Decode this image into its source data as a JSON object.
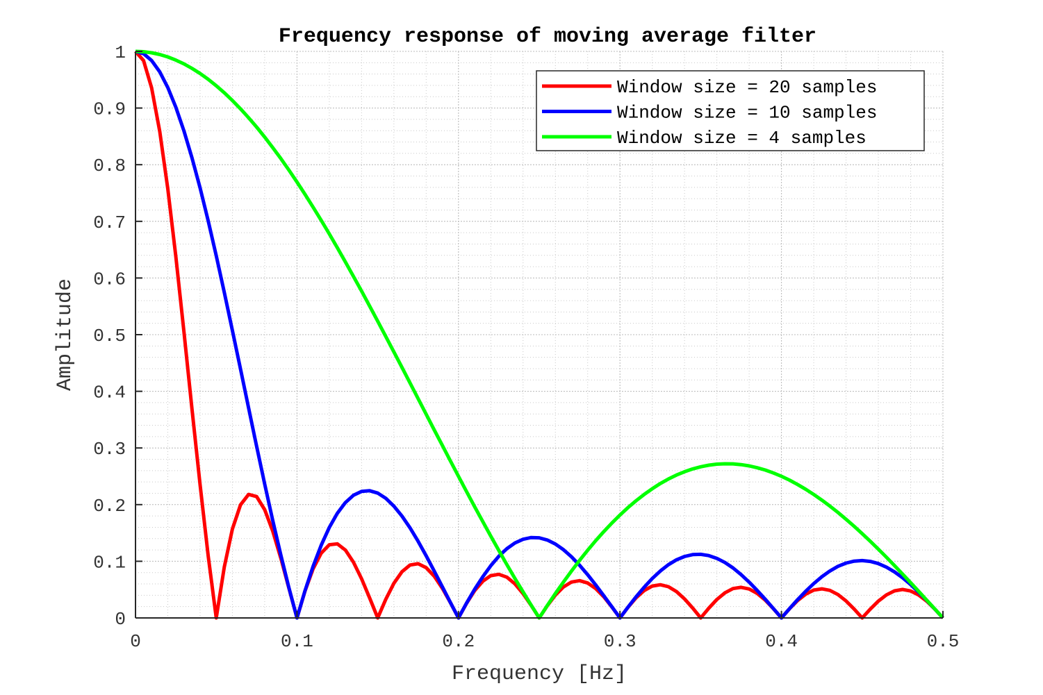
{
  "chart_data": {
    "type": "line",
    "title": "Frequency response of moving average filter",
    "xlabel": "Frequency [Hz]",
    "ylabel": "Amplitude",
    "xlim": [
      0,
      0.5
    ],
    "ylim": [
      0,
      1
    ],
    "xticks": [
      "0",
      "0.1",
      "0.2",
      "0.3",
      "0.4",
      "0.5"
    ],
    "yticks": [
      "0",
      "0.1",
      "0.2",
      "0.3",
      "0.4",
      "0.5",
      "0.6",
      "0.7",
      "0.8",
      "0.9",
      "1"
    ],
    "grid": true,
    "minor_grid": true,
    "legend_position": "top-right",
    "x": [
      0,
      0.005,
      0.01,
      0.015,
      0.02,
      0.025,
      0.03,
      0.035,
      0.04,
      0.045,
      0.05,
      0.055,
      0.06,
      0.065,
      0.07,
      0.075,
      0.08,
      0.085,
      0.09,
      0.095,
      0.1,
      0.105,
      0.11,
      0.115,
      0.12,
      0.125,
      0.13,
      0.135,
      0.14,
      0.145,
      0.15,
      0.155,
      0.16,
      0.165,
      0.17,
      0.175,
      0.18,
      0.185,
      0.19,
      0.195,
      0.2,
      0.205,
      0.21,
      0.215,
      0.22,
      0.225,
      0.23,
      0.235,
      0.24,
      0.245,
      0.25,
      0.255,
      0.26,
      0.265,
      0.27,
      0.275,
      0.28,
      0.285,
      0.29,
      0.295,
      0.3,
      0.305,
      0.31,
      0.315,
      0.32,
      0.325,
      0.33,
      0.335,
      0.34,
      0.345,
      0.35,
      0.355,
      0.36,
      0.365,
      0.37,
      0.375,
      0.38,
      0.385,
      0.39,
      0.395,
      0.4,
      0.405,
      0.41,
      0.415,
      0.42,
      0.425,
      0.43,
      0.435,
      0.44,
      0.445,
      0.45,
      0.455,
      0.46,
      0.465,
      0.47,
      0.475,
      0.48,
      0.485,
      0.49,
      0.495,
      0.5
    ],
    "series": [
      {
        "name": "Window size = 20 samples",
        "color": "#ff0000",
        "values": [
          1,
          0.9837,
          0.9356,
          0.8587,
          0.7573,
          0.6373,
          0.5053,
          0.3686,
          0.2345,
          0.1097,
          0,
          0.0899,
          0.1568,
          0.1995,
          0.218,
          0.2142,
          0.1912,
          0.1533,
          0.1053,
          0.0525,
          0,
          0.0477,
          0.0868,
          0.1144,
          0.1292,
          0.1307,
          0.1197,
          0.0983,
          0.069,
          0.0351,
          0,
          0.033,
          0.061,
          0.0816,
          0.0934,
          0.0957,
          0.0887,
          0.0737,
          0.0523,
          0.0269,
          0,
          0.0257,
          0.048,
          0.0647,
          0.0746,
          0.077,
          0.0719,
          0.0601,
          0.0429,
          0.0222,
          0,
          0.0215,
          0.0403,
          0.0547,
          0.0634,
          0.0658,
          0.0617,
          0.0518,
          0.0372,
          0.0193,
          0,
          0.0189,
          0.0355,
          0.0484,
          0.0563,
          0.0586,
          0.0552,
          0.0466,
          0.0335,
          0.0175,
          0,
          0.0172,
          0.0325,
          0.0444,
          0.0518,
          0.0541,
          0.0511,
          0.0432,
          0.0312,
          0.0163,
          0,
          0.0162,
          0.0306,
          0.0419,
          0.0491,
          0.0514,
          0.0487,
          0.0413,
          0.0299,
          0.0157,
          0,
          0.0156,
          0.0296,
          0.0407,
          0.0478,
          0.0502,
          0.0476,
          0.0405,
          0.0294,
          0.0155,
          0
        ]
      },
      {
        "name": "Window size = 10 samples",
        "color": "#0000ff",
        "values": [
          1,
          0.996,
          0.9838,
          0.9638,
          0.9361,
          0.9012,
          0.8597,
          0.812,
          0.7588,
          0.701,
          0.6393,
          0.5745,
          0.5076,
          0.4394,
          0.3709,
          0.3029,
          0.2364,
          0.172,
          0.1108,
          0.0532,
          0,
          0.0483,
          0.0912,
          0.1284,
          0.1597,
          0.1848,
          0.2037,
          0.2165,
          0.2234,
          0.2245,
          0.2203,
          0.2111,
          0.1974,
          0.1798,
          0.1589,
          0.1353,
          0.1097,
          0.0827,
          0.055,
          0.0272,
          0,
          0.0261,
          0.0504,
          0.0726,
          0.0922,
          0.1089,
          0.1223,
          0.1324,
          0.1389,
          0.1419,
          0.1414,
          0.1375,
          0.1305,
          0.1205,
          0.1079,
          0.093,
          0.0763,
          0.0582,
          0.0391,
          0.0196,
          0,
          0.0191,
          0.0374,
          0.0543,
          0.0696,
          0.0829,
          0.094,
          0.1026,
          0.1085,
          0.1118,
          0.1122,
          0.11,
          0.1051,
          0.0978,
          0.0882,
          0.0765,
          0.0632,
          0.0485,
          0.0328,
          0.0165,
          0,
          0.0164,
          0.0322,
          0.0471,
          0.0607,
          0.0727,
          0.0829,
          0.091,
          0.0968,
          0.1003,
          0.1012,
          0.0998,
          0.0959,
          0.0896,
          0.0813,
          0.0709,
          0.0589,
          0.0454,
          0.0309,
          0.0156,
          0
        ]
      },
      {
        "name": "Window size = 4 samples",
        "color": "#00ff00",
        "values": [
          1,
          0.9994,
          0.9975,
          0.9945,
          0.9902,
          0.9846,
          0.9779,
          0.97,
          0.9609,
          0.9507,
          0.9393,
          0.9269,
          0.9133,
          0.8987,
          0.883,
          0.8664,
          0.8488,
          0.8302,
          0.8108,
          0.7905,
          0.7694,
          0.7476,
          0.725,
          0.7017,
          0.6778,
          0.6533,
          0.6282,
          0.6027,
          0.5768,
          0.5504,
          0.5237,
          0.4967,
          0.4696,
          0.4422,
          0.4147,
          0.3871,
          0.3595,
          0.3319,
          0.3045,
          0.2771,
          0.25,
          0.2231,
          0.1965,
          0.1702,
          0.1444,
          0.119,
          0.094,
          0.0696,
          0.0458,
          0.0226,
          0,
          0.0219,
          0.043,
          0.0633,
          0.0829,
          0.1016,
          0.1194,
          0.1364,
          0.1524,
          0.1675,
          0.1816,
          0.1948,
          0.2069,
          0.218,
          0.2281,
          0.2372,
          0.2452,
          0.2522,
          0.2581,
          0.263,
          0.2668,
          0.2696,
          0.2714,
          0.2721,
          0.2719,
          0.2706,
          0.2684,
          0.2651,
          0.261,
          0.2559,
          0.25,
          0.2432,
          0.2356,
          0.2271,
          0.2179,
          0.208,
          0.1974,
          0.1861,
          0.1742,
          0.1618,
          0.1488,
          0.1353,
          0.1214,
          0.1071,
          0.0924,
          0.0775,
          0.0623,
          0.0469,
          0.0313,
          0.0157,
          0
        ]
      }
    ]
  }
}
